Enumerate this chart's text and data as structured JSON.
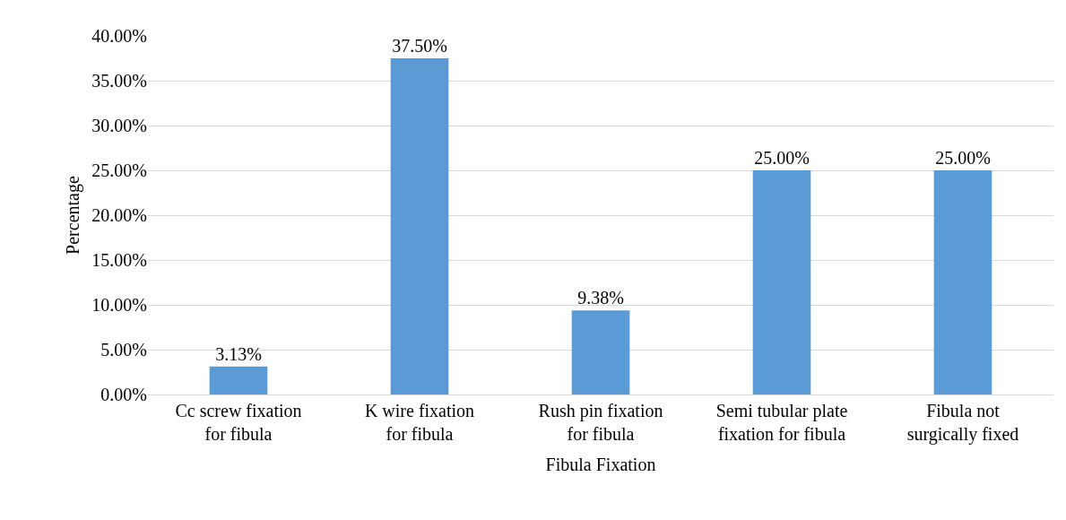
{
  "chart_data": {
    "type": "bar",
    "xlabel": "Fibula Fixation",
    "ylabel": "Percentage",
    "categories": [
      "Cc screw fixation\nfor fibula",
      "K wire fixation\nfor fibula",
      "Rush pin fixation\nfor fibula",
      "Semi tubular plate\nfixation for fibula",
      "Fibula not\nsurgically fixed"
    ],
    "values": [
      3.13,
      37.5,
      9.38,
      25.0,
      25.0
    ],
    "value_labels": [
      "3.13%",
      "37.50%",
      "9.38%",
      "25.00%",
      "25.00%"
    ],
    "color": "#5b9bd5",
    "ylim": [
      0,
      40
    ],
    "yticks": [
      {
        "value": 0,
        "label": "0.00%"
      },
      {
        "value": 5,
        "label": "5.00%"
      },
      {
        "value": 10,
        "label": "10.00%"
      },
      {
        "value": 15,
        "label": "15.00%"
      },
      {
        "value": 20,
        "label": "20.00%"
      },
      {
        "value": 25,
        "label": "25.00%"
      },
      {
        "value": 30,
        "label": "30.00%"
      },
      {
        "value": 35,
        "label": "35.00%"
      },
      {
        "value": 40,
        "label": "40.00%"
      }
    ],
    "grid": "y",
    "legend": false
  }
}
